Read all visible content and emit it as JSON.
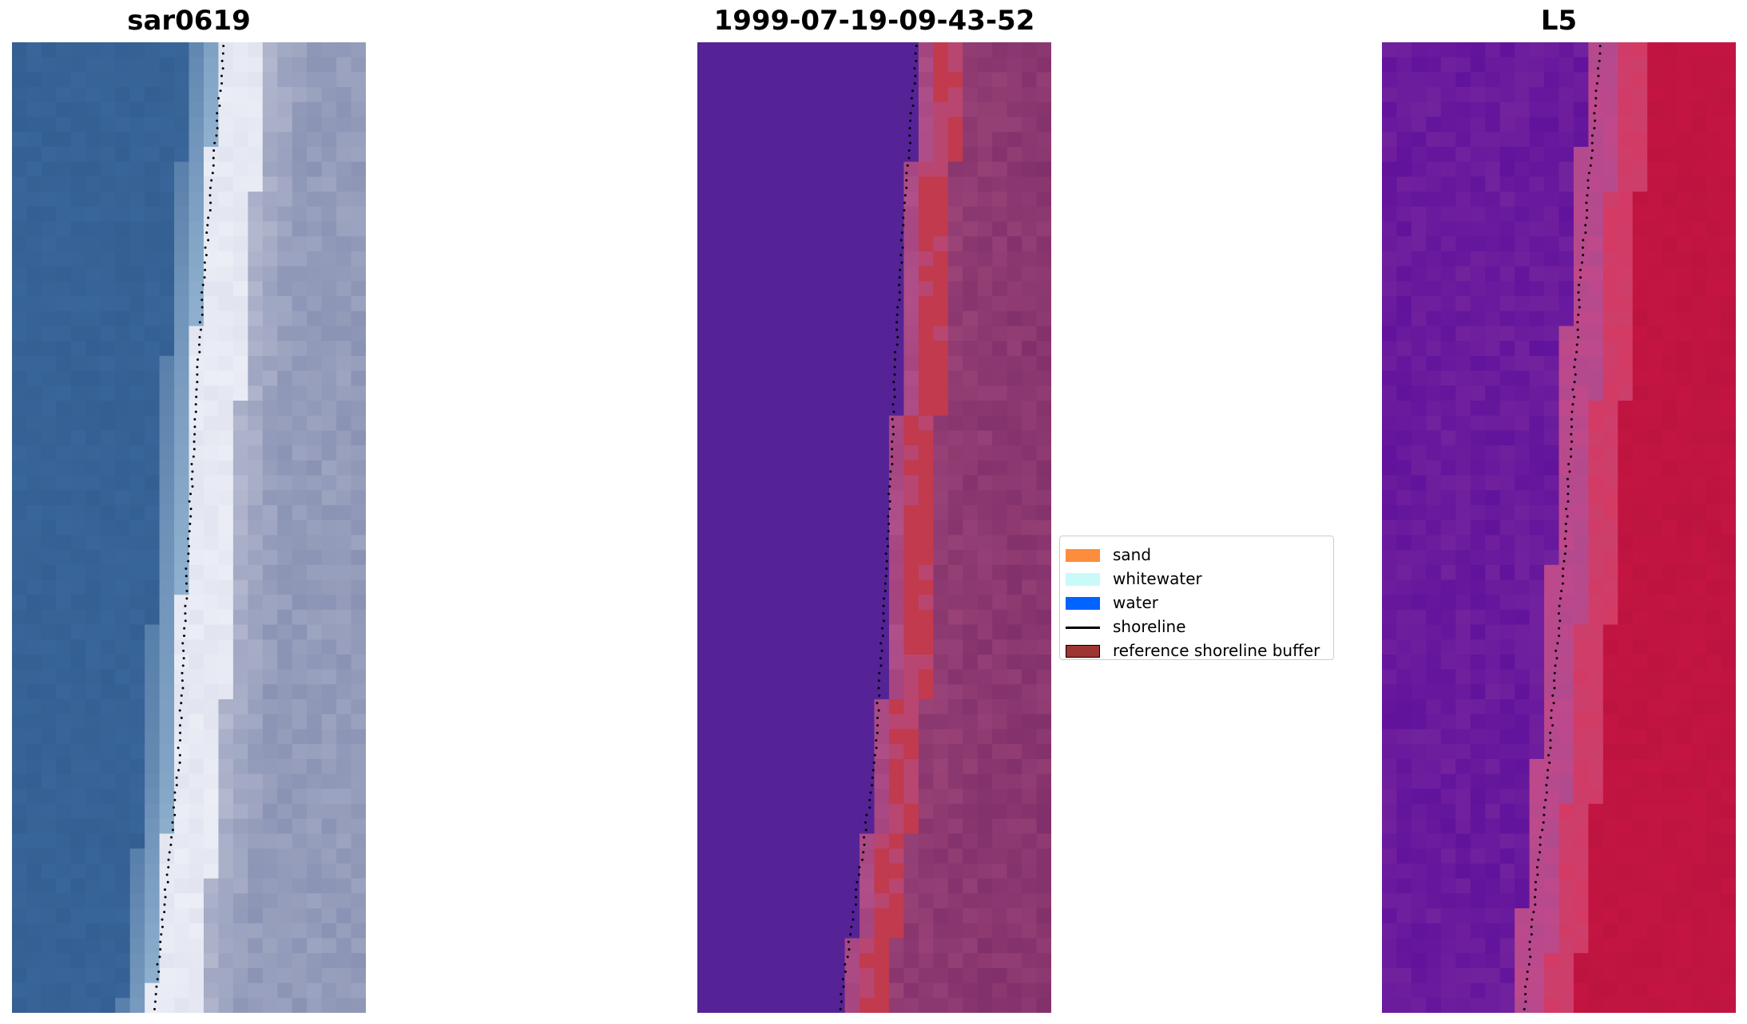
{
  "chart_data": [
    {
      "type": "heatmap",
      "title": "sar0619",
      "description_view": "RGB satellite image",
      "colors": {
        "water": "#345f93",
        "surf": "#8fb0ce",
        "whitewater": "#eceef6",
        "land": "#8a93b4"
      },
      "shoreline_x": [
        0.6,
        0.54,
        0.5,
        0.47,
        0.4
      ]
    },
    {
      "type": "heatmap",
      "title": "1999-07-19-09-43-52",
      "colors": {
        "water": "#552396",
        "buffer": "#c13a4e",
        "land": "#9a4478",
        "land_dark": "#82306b"
      },
      "shoreline_x": [
        0.62,
        0.57,
        0.54,
        0.5,
        0.4
      ]
    },
    {
      "type": "heatmap",
      "title": "L5",
      "colors": {
        "water": "#72229d",
        "water_dark": "#5d0f9c",
        "transition": "#b24a8e",
        "land": "#c41542"
      },
      "shoreline_x": [
        0.62,
        0.56,
        0.52,
        0.47,
        0.4
      ]
    }
  ],
  "legend": {
    "entries": [
      {
        "label": "sand",
        "type": "patch",
        "color": "#fd8c3c"
      },
      {
        "label": "whitewater",
        "type": "patch",
        "color": "#c9fafa"
      },
      {
        "label": "water",
        "type": "patch",
        "color": "#0064ff"
      },
      {
        "label": "shoreline",
        "type": "line",
        "color": "#000000"
      },
      {
        "label": "reference shoreline buffer",
        "type": "patch",
        "color": "#9e3533"
      }
    ]
  }
}
